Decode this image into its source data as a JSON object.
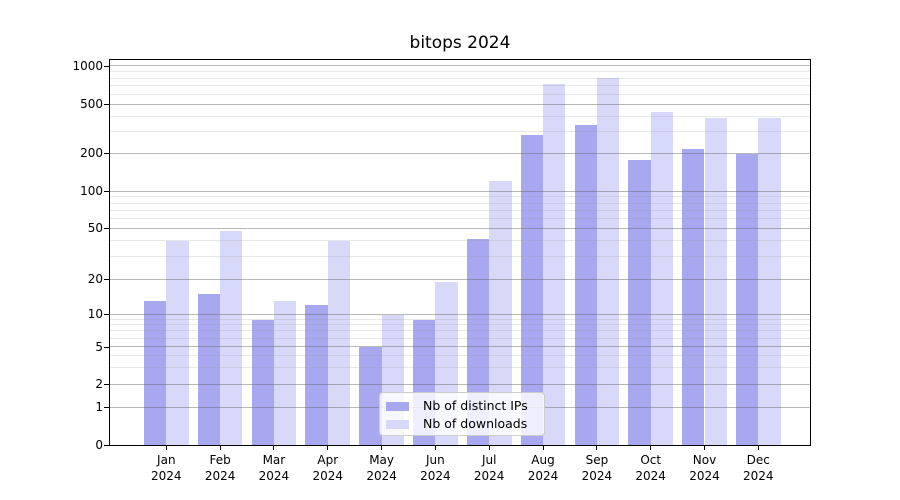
{
  "chart_data": {
    "type": "bar",
    "title": "bitops 2024",
    "categories": [
      "Jan",
      "Feb",
      "Mar",
      "Apr",
      "May",
      "Jun",
      "Jul",
      "Aug",
      "Sep",
      "Oct",
      "Nov",
      "Dec"
    ],
    "year_label": "2024",
    "series": [
      {
        "name": "Nb of distinct IPs",
        "color": "#a8a8f0",
        "values": [
          13,
          15,
          9,
          12,
          5,
          9,
          42,
          285,
          340,
          180,
          218,
          198
        ]
      },
      {
        "name": "Nb of downloads",
        "color": "#d8d8f8",
        "values": [
          40,
          48,
          13,
          40,
          10,
          19,
          122,
          725,
          810,
          440,
          390,
          390
        ]
      }
    ],
    "xlabel": "",
    "ylabel": "",
    "y_axis": {
      "scale": "symlog",
      "major_ticks": [
        0,
        1,
        2,
        5,
        10,
        20,
        50,
        100,
        200,
        500,
        1000
      ],
      "minor_ticks": [
        3,
        4,
        6,
        7,
        8,
        9,
        30,
        40,
        60,
        70,
        80,
        90,
        300,
        400,
        600,
        700,
        800,
        900
      ],
      "range": [
        0,
        1000
      ]
    },
    "legend": {
      "position": "lower center",
      "entries": [
        "Nb of distinct IPs",
        "Nb of downloads"
      ]
    },
    "grid": {
      "horizontal_major": true,
      "horizontal_minor": true,
      "drawn_above_bars": true
    },
    "colors": {
      "grid_major": "#bdbdbd",
      "grid_minor": "#e6e6e6",
      "spine": "#000000"
    }
  }
}
